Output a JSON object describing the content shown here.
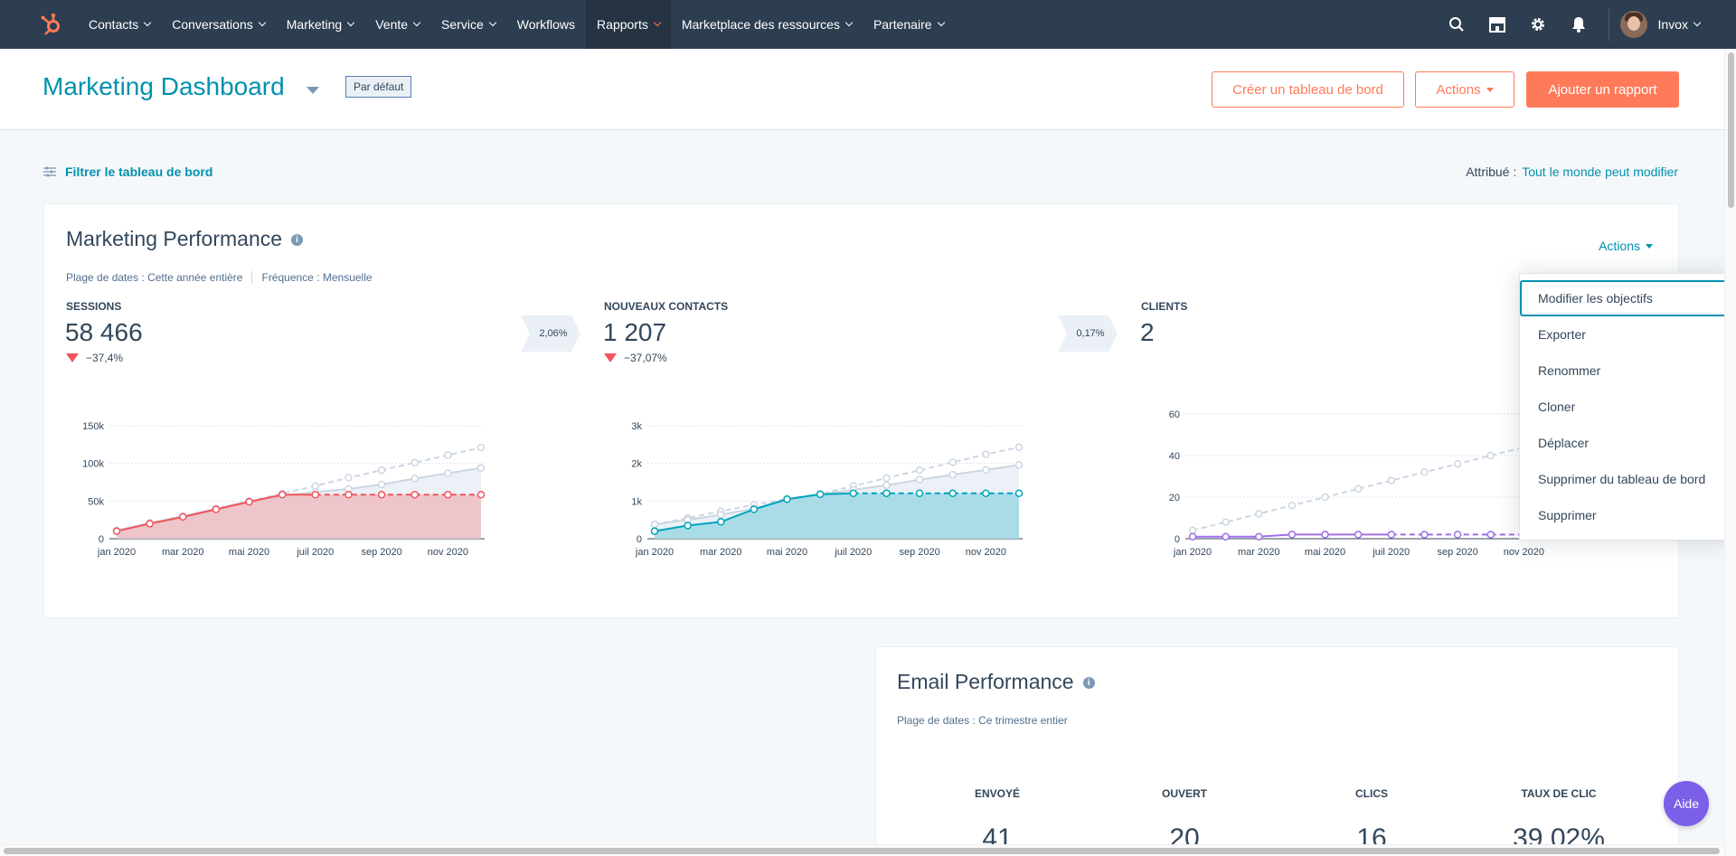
{
  "nav": {
    "items": [
      {
        "label": "Contacts"
      },
      {
        "label": "Conversations"
      },
      {
        "label": "Marketing"
      },
      {
        "label": "Vente"
      },
      {
        "label": "Service"
      },
      {
        "label": "Workflows"
      },
      {
        "label": "Rapports"
      },
      {
        "label": "Marketplace des ressources"
      },
      {
        "label": "Partenaire"
      }
    ],
    "active_item": "Rapports",
    "account_name": "Invox",
    "icons": [
      "search-icon",
      "marketplace-icon",
      "settings-icon",
      "notifications-icon"
    ]
  },
  "header": {
    "title": "Marketing Dashboard",
    "badge": "Par défaut",
    "create_button": "Créer un tableau de bord",
    "actions_button": "Actions",
    "add_report_button": "Ajouter un rapport"
  },
  "filter": {
    "label": "Filtrer le tableau de bord",
    "assigned_label": "Attribué :",
    "assigned_value": "Tout le monde peut modifier"
  },
  "marketing_card": {
    "title": "Marketing Performance",
    "date_range": "Plage de dates : Cette année entière",
    "frequency": "Fréquence : Mensuelle",
    "actions_label": "Actions",
    "kpis": [
      {
        "label": "SESSIONS",
        "value": "58 466",
        "change": "−37,4%"
      },
      {
        "label": "NOUVEAUX CONTACTS",
        "value": "1 207",
        "change": "−37,07%"
      },
      {
        "label": "CLIENTS",
        "value": "2"
      }
    ],
    "conversions": [
      "2,06%",
      "0,17%"
    ]
  },
  "dropdown": {
    "items": [
      {
        "label": "Modifier les objectifs"
      },
      {
        "label": "Exporter"
      },
      {
        "label": "Renommer"
      },
      {
        "label": "Cloner"
      },
      {
        "label": "Déplacer"
      },
      {
        "label": "Supprimer du tableau de bord"
      },
      {
        "label": "Supprimer"
      }
    ],
    "focused_index": 0
  },
  "email_card": {
    "title": "Email Performance",
    "date_range": "Plage de dates : Ce trimestre entier",
    "columns": [
      {
        "label": "ENVOYÉ",
        "value": "41"
      },
      {
        "label": "OUVERT",
        "value": "20"
      },
      {
        "label": "CLICS",
        "value": "16"
      },
      {
        "label": "TAUX DE CLIC",
        "value": "39,02%"
      }
    ]
  },
  "help_button": "Aide",
  "colors": {
    "nav_bg": "#2d3e50",
    "accent": "#ff7a59",
    "link": "#0091ae",
    "sessions": "#f2545b",
    "contacts": "#00a4bd",
    "clients": "#a06ee8",
    "goal": "#cbd6e2"
  },
  "chart_data": [
    {
      "type": "area",
      "title": "SESSIONS",
      "x": [
        "jan 2020",
        "fév 2020",
        "mar 2020",
        "avr 2020",
        "mai 2020",
        "juin 2020",
        "juil 2020",
        "août 2020",
        "sep 2020",
        "oct 2020",
        "nov 2020",
        "déc 2020"
      ],
      "x_tick_labels": [
        "jan 2020",
        "mar 2020",
        "mai 2020",
        "juil 2020",
        "sep 2020",
        "nov 2020"
      ],
      "y_tick_labels": [
        "0",
        "50k",
        "100k",
        "150k"
      ],
      "ylim": [
        0,
        150000
      ],
      "series": [
        {
          "values": [
            10000,
            20000,
            29000,
            39000,
            49000,
            58466,
            58466,
            58466,
            58466,
            58466,
            58466,
            58466
          ]
        },
        {
          "values": [
            11000,
            21000,
            30000,
            40000,
            50000,
            57000,
            62000,
            66000,
            72000,
            80000,
            87000,
            94000
          ]
        },
        {
          "values": [
            11000,
            21000,
            30000,
            40000,
            50000,
            60000,
            70000,
            81000,
            91000,
            101000,
            111000,
            121000
          ]
        }
      ]
    },
    {
      "type": "area",
      "title": "NOUVEAUX CONTACTS",
      "x": [
        "jan 2020",
        "fév 2020",
        "mar 2020",
        "avr 2020",
        "mai 2020",
        "juin 2020",
        "juil 2020",
        "août 2020",
        "sep 2020",
        "oct 2020",
        "nov 2020",
        "déc 2020"
      ],
      "x_tick_labels": [
        "jan 2020",
        "mar 2020",
        "mai 2020",
        "juil 2020",
        "sep 2020",
        "nov 2020"
      ],
      "y_tick_labels": [
        "0",
        "1k",
        "2k",
        "3k"
      ],
      "ylim": [
        0,
        3000
      ],
      "series": [
        {
          "values": [
            200,
            350,
            450,
            780,
            1050,
            1180,
            1207,
            1207,
            1207,
            1207,
            1207,
            1207
          ]
        },
        {
          "values": [
            380,
            500,
            640,
            800,
            1050,
            1180,
            1300,
            1420,
            1570,
            1700,
            1830,
            1960
          ]
        },
        {
          "values": [
            380,
            550,
            730,
            900,
            1060,
            1190,
            1400,
            1610,
            1820,
            2030,
            2240,
            2430
          ]
        }
      ]
    },
    {
      "type": "line",
      "title": "CLIENTS",
      "x": [
        "jan 2020",
        "fév 2020",
        "mar 2020",
        "avr 2020",
        "mai 2020",
        "juin 2020",
        "juil 2020",
        "août 2020",
        "sep 2020",
        "oct 2020",
        "nov 2020",
        "déc 2020"
      ],
      "x_tick_labels": [
        "jan 2020",
        "mar 2020",
        "mai 2020",
        "juil 2020",
        "sep 2020",
        "nov 2020"
      ],
      "y_tick_labels": [
        "0",
        "20",
        "40",
        "60"
      ],
      "ylim": [
        0,
        60
      ],
      "series": [
        {
          "values": [
            1,
            1,
            1,
            2,
            2,
            2,
            2,
            2,
            2,
            2,
            2,
            2
          ]
        },
        {
          "values": [
            4,
            8,
            12,
            16,
            20,
            24,
            28,
            32,
            36,
            40,
            44,
            48
          ]
        }
      ]
    }
  ]
}
